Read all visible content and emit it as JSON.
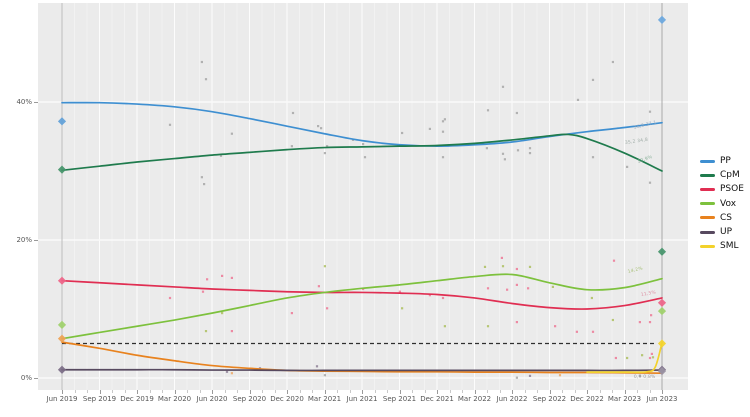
{
  "chart_data": {
    "type": "line",
    "title": "",
    "x": {
      "categories": [
        "Jun 2019",
        "Sep 2019",
        "Dec 2019",
        "Mar 2020",
        "Jun 2020",
        "Sep 2020",
        "Dec 2020",
        "Mar 2021",
        "Jun 2021",
        "Sep 2021",
        "Dec 2021",
        "Mar 2022",
        "Jun 2022",
        "Sep 2022",
        "Dec 2022",
        "Mar 2023",
        "Jun 2023"
      ],
      "minor_ticks_per_interval": 3
    },
    "y": {
      "ticks": [
        0,
        20,
        40
      ],
      "tick_labels": [
        "0%",
        "20%",
        "40%"
      ],
      "range": [
        -2,
        56
      ],
      "grid": true
    },
    "threshold": {
      "value": 5,
      "style": "dashed",
      "color": "#2f2f2f"
    },
    "legend": {
      "position": "right"
    },
    "series": [
      {
        "name": "PP",
        "color": "#3e8fd1",
        "points": [
          [
            0,
            39.9
          ],
          [
            1,
            39.9
          ],
          [
            2,
            39.7
          ],
          [
            3,
            39.3
          ],
          [
            4,
            38.6
          ],
          [
            5,
            37.6
          ],
          [
            6,
            36.5
          ],
          [
            7,
            35.4
          ],
          [
            8,
            34.4
          ],
          [
            9,
            33.8
          ],
          [
            10,
            33.6
          ],
          [
            11,
            33.8
          ],
          [
            12,
            34.2
          ],
          [
            13,
            35.0
          ],
          [
            14,
            35.7
          ],
          [
            15,
            36.3
          ],
          [
            16,
            37.0
          ]
        ]
      },
      {
        "name": "CpM",
        "color": "#1f7b4d",
        "points": [
          [
            0,
            30.1
          ],
          [
            1,
            30.7
          ],
          [
            2,
            31.3
          ],
          [
            3,
            31.8
          ],
          [
            4,
            32.3
          ],
          [
            5,
            32.7
          ],
          [
            6,
            33.1
          ],
          [
            7,
            33.4
          ],
          [
            8,
            33.5
          ],
          [
            9,
            33.6
          ],
          [
            10,
            33.7
          ],
          [
            11,
            34.0
          ],
          [
            12,
            34.5
          ],
          [
            13,
            35.1
          ],
          [
            13.5,
            35.3
          ],
          [
            14,
            34.7
          ],
          [
            15,
            32.6
          ],
          [
            16,
            30.0
          ]
        ]
      },
      {
        "name": "PSOE",
        "color": "#e02e52",
        "points": [
          [
            0,
            14.1
          ],
          [
            1,
            13.8
          ],
          [
            2,
            13.5
          ],
          [
            3,
            13.2
          ],
          [
            4,
            12.9
          ],
          [
            5,
            12.7
          ],
          [
            6,
            12.5
          ],
          [
            7,
            12.4
          ],
          [
            8,
            12.4
          ],
          [
            9,
            12.3
          ],
          [
            10,
            12.1
          ],
          [
            11,
            11.6
          ],
          [
            12,
            10.8
          ],
          [
            13,
            10.2
          ],
          [
            14,
            10.0
          ],
          [
            15,
            10.5
          ],
          [
            16,
            11.6
          ]
        ]
      },
      {
        "name": "Vox",
        "color": "#7dc13d",
        "points": [
          [
            0,
            5.7
          ],
          [
            1,
            6.6
          ],
          [
            2,
            7.5
          ],
          [
            3,
            8.4
          ],
          [
            4,
            9.4
          ],
          [
            5,
            10.5
          ],
          [
            6,
            11.6
          ],
          [
            7,
            12.4
          ],
          [
            8,
            13.0
          ],
          [
            9,
            13.5
          ],
          [
            10,
            14.1
          ],
          [
            11,
            14.7
          ],
          [
            12,
            15.0
          ],
          [
            13,
            13.8
          ],
          [
            14,
            12.8
          ],
          [
            15,
            13.1
          ],
          [
            16,
            14.4
          ]
        ]
      },
      {
        "name": "CS",
        "color": "#e8821e",
        "points": [
          [
            0,
            5.2
          ],
          [
            1,
            4.3
          ],
          [
            2,
            3.3
          ],
          [
            3,
            2.5
          ],
          [
            4,
            1.8
          ],
          [
            5,
            1.4
          ],
          [
            6,
            1.1
          ],
          [
            7,
            1.0
          ],
          [
            8,
            0.95
          ],
          [
            9,
            0.9
          ],
          [
            10,
            0.9
          ],
          [
            11,
            0.85
          ],
          [
            12,
            0.85
          ],
          [
            13,
            0.8
          ],
          [
            14,
            0.8
          ],
          [
            15,
            0.75
          ],
          [
            16,
            0.7
          ]
        ]
      },
      {
        "name": "UP",
        "color": "#57495f",
        "points": [
          [
            0,
            1.2
          ],
          [
            1,
            1.2
          ],
          [
            2,
            1.2
          ],
          [
            3,
            1.2
          ],
          [
            4,
            1.15
          ],
          [
            5,
            1.15
          ],
          [
            6,
            1.1
          ],
          [
            7,
            1.1
          ],
          [
            8,
            1.1
          ],
          [
            9,
            1.1
          ],
          [
            10,
            1.1
          ],
          [
            11,
            1.1
          ],
          [
            12,
            1.1
          ],
          [
            13,
            1.1
          ],
          [
            14,
            1.1
          ],
          [
            15,
            1.1
          ],
          [
            16,
            1.15
          ]
        ]
      },
      {
        "name": "SML",
        "color": "#f3d22b",
        "points": [
          [
            14,
            0.85
          ],
          [
            15,
            0.85
          ],
          [
            15.6,
            0.9
          ],
          [
            15.82,
            1.6
          ],
          [
            16,
            5.1
          ]
        ]
      }
    ],
    "scatter_groups": [
      {
        "name": "poll-dots-gray",
        "color": "#a2a2a2",
        "points": [
          [
            2.88,
            36.7
          ],
          [
            3.73,
            45.8
          ],
          [
            3.84,
            43.3
          ],
          [
            3.73,
            29.1
          ],
          [
            3.79,
            28.1
          ],
          [
            4.24,
            32.2
          ],
          [
            4.53,
            35.4
          ],
          [
            6.13,
            33.6
          ],
          [
            6.16,
            38.4
          ],
          [
            6.83,
            36.5
          ],
          [
            6.91,
            36.2
          ],
          [
            7.01,
            32.6
          ],
          [
            7.07,
            33.6
          ],
          [
            7.76,
            34.5
          ],
          [
            8.03,
            33.9
          ],
          [
            8.08,
            32.0
          ],
          [
            9.07,
            35.5
          ],
          [
            9.81,
            36.1
          ],
          [
            10.16,
            37.2
          ],
          [
            10.16,
            35.7
          ],
          [
            10.16,
            32.0
          ],
          [
            10.21,
            37.5
          ],
          [
            11.36,
            38.8
          ],
          [
            11.33,
            33.3
          ],
          [
            11.76,
            42.2
          ],
          [
            11.76,
            32.5
          ],
          [
            11.81,
            31.7
          ],
          [
            12.13,
            38.4
          ],
          [
            12.16,
            33.0
          ],
          [
            12.48,
            33.3
          ],
          [
            12.48,
            32.6
          ],
          [
            13.76,
            40.3
          ],
          [
            14.16,
            43.2
          ],
          [
            14.16,
            32.0
          ],
          [
            14.69,
            45.8
          ],
          [
            15.07,
            30.6
          ],
          [
            15.68,
            38.6
          ],
          [
            15.68,
            28.3
          ]
        ]
      },
      {
        "name": "poll-dots-psoe",
        "color": "#ee7291",
        "points": [
          [
            2.88,
            11.6
          ],
          [
            3.76,
            12.5
          ],
          [
            3.87,
            14.3
          ],
          [
            4.27,
            14.8
          ],
          [
            4.53,
            14.5
          ],
          [
            4.53,
            6.8
          ],
          [
            6.13,
            9.4
          ],
          [
            6.85,
            13.3
          ],
          [
            7.07,
            10.1
          ],
          [
            8.03,
            12.9
          ],
          [
            9.01,
            12.5
          ],
          [
            9.81,
            12.0
          ],
          [
            10.16,
            11.6
          ],
          [
            11.36,
            13.0
          ],
          [
            11.73,
            17.4
          ],
          [
            11.87,
            12.8
          ],
          [
            12.13,
            15.8
          ],
          [
            12.13,
            13.5
          ],
          [
            12.13,
            8.1
          ],
          [
            12.43,
            13.0
          ],
          [
            13.15,
            7.5
          ],
          [
            13.73,
            6.7
          ],
          [
            14.16,
            6.7
          ],
          [
            14.72,
            17.0
          ],
          [
            14.77,
            2.9
          ],
          [
            15.41,
            8.1
          ],
          [
            15.68,
            8.1
          ],
          [
            15.71,
            9.1
          ],
          [
            15.68,
            2.9
          ],
          [
            15.73,
            3.5
          ]
        ]
      },
      {
        "name": "poll-dots-vox",
        "color": "#a9bd58",
        "points": [
          [
            3.84,
            6.8
          ],
          [
            4.27,
            9.4
          ],
          [
            7.01,
            16.2
          ],
          [
            9.07,
            10.1
          ],
          [
            10.21,
            7.5
          ],
          [
            11.28,
            16.1
          ],
          [
            11.36,
            7.5
          ],
          [
            11.76,
            16.2
          ],
          [
            12.48,
            16.1
          ],
          [
            13.09,
            13.2
          ],
          [
            14.13,
            11.6
          ],
          [
            14.69,
            8.4
          ],
          [
            15.07,
            2.9
          ],
          [
            15.47,
            3.3
          ],
          [
            15.76,
            3.0
          ]
        ]
      },
      {
        "name": "poll-dots-up",
        "color": "#8a7a92",
        "points": [
          [
            4.4,
            0.9
          ],
          [
            5.28,
            1.4
          ],
          [
            6.8,
            1.7
          ],
          [
            12.48,
            0.3
          ]
        ]
      },
      {
        "name": "poll-dots-cs",
        "color": "#eda55e",
        "points": [
          [
            4.53,
            0.7
          ],
          [
            13.28,
            0.4
          ]
        ]
      },
      {
        "name": "poll-dots-misc",
        "color": "#a0a0a0",
        "points": [
          [
            7.01,
            0.4
          ],
          [
            12.13,
            0.05
          ],
          [
            15.41,
            0.3
          ]
        ]
      }
    ],
    "elections": [
      {
        "label": "Jun 2019",
        "x_index": 0,
        "line_color": "#bcbcbc",
        "results": [
          {
            "party": "PP",
            "value": 37.2,
            "color": "#5fa0d8"
          },
          {
            "party": "CpM",
            "value": 30.2,
            "color": "#44946a"
          },
          {
            "party": "PSOE",
            "value": 14.1,
            "color": "#ee6488"
          },
          {
            "party": "Vox",
            "value": 7.7,
            "color": "#9ed06a"
          },
          {
            "party": "CS",
            "value": 5.7,
            "color": "#efa253"
          },
          {
            "party": "UP",
            "value": 1.2,
            "color": "#7b6d85"
          }
        ]
      },
      {
        "label": "Jun 2023",
        "x_index": 16,
        "line_color": "#a9a9a9",
        "results": [
          {
            "party": "PP",
            "value": 51.9,
            "color": "#6aa7de"
          },
          {
            "party": "CpM",
            "value": 18.3,
            "color": "#44946a"
          },
          {
            "party": "PSOE",
            "value": 10.9,
            "color": "#ee6488"
          },
          {
            "party": "Vox",
            "value": 9.7,
            "color": "#9ed06a"
          },
          {
            "party": "SML",
            "value": 5.0,
            "color": "#f3d22b"
          },
          {
            "party": "UP",
            "value": 1.2,
            "color": "#7b6d85"
          },
          {
            "party": "Others",
            "value": 1.0,
            "color": "#9a93a3"
          }
        ]
      }
    ],
    "annotations": [
      {
        "i": 15.25,
        "v": 36.2,
        "text": "36,9 37,1",
        "color": "#8fa6bd",
        "rot": -14
      },
      {
        "i": 15.02,
        "v": 34.0,
        "text": "35,2 34,8",
        "color": "#9aa8a2",
        "rot": -8
      },
      {
        "i": 15.35,
        "v": 31.3,
        "text": "30,9%",
        "color": "#86af97",
        "rot": -20
      },
      {
        "i": 15.1,
        "v": 15.3,
        "text": "14,2%",
        "color": "#a3bd72",
        "rot": -14
      },
      {
        "i": 15.45,
        "v": 12.1,
        "text": "11,5%",
        "color": "#dc8ba0",
        "rot": -10
      },
      {
        "i": 15.25,
        "v": 0.2,
        "text": "0,9  0,8%",
        "color": "#9b9b9b",
        "rot": 0
      }
    ]
  }
}
